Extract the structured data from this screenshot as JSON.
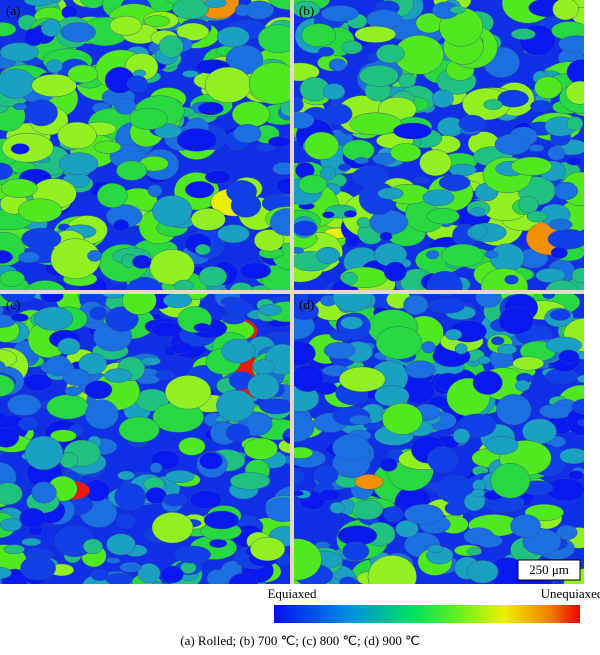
{
  "panels": [
    {
      "label": "(a)"
    },
    {
      "label": "(b)"
    },
    {
      "label": "(c)"
    },
    {
      "label": "(d)"
    }
  ],
  "scale_bar": "250 μm",
  "colorbar": {
    "min_label": "Equiaxed",
    "max_label": "Unequiaxed"
  },
  "caption": "(a) Rolled; (b) 700 ℃; (c) 800 ℃; (d) 900 ℃"
}
